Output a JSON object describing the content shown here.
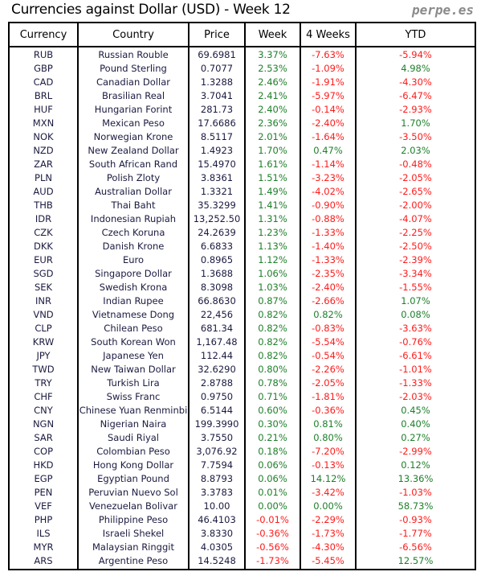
{
  "title": "Currencies against Dollar (USD) - Week 12",
  "brand": "perpe.es",
  "colors": {
    "positive": "#1e7f2a",
    "negative": "#ff1a1a"
  },
  "headers": [
    "Currency",
    "Country",
    "Price",
    "Week",
    "4 Weeks",
    "YTD"
  ],
  "rows": [
    [
      "RUB",
      "Russian Rouble",
      "69.6981",
      "3.37%",
      "-7.63%",
      "-5.94%"
    ],
    [
      "GBP",
      "Pound Sterling",
      "0.7077",
      "2.53%",
      "-1.09%",
      "4.98%"
    ],
    [
      "CAD",
      "Canadian Dollar",
      "1.3288",
      "2.46%",
      "-1.91%",
      "-4.30%"
    ],
    [
      "BRL",
      "Brasilian Real",
      "3.7041",
      "2.41%",
      "-5.97%",
      "-6.47%"
    ],
    [
      "HUF",
      "Hungarian Forint",
      "281.73",
      "2.40%",
      "-0.14%",
      "-2.93%"
    ],
    [
      "MXN",
      "Mexican Peso",
      "17.6686",
      "2.36%",
      "-2.40%",
      "1.70%"
    ],
    [
      "NOK",
      "Norwegian Krone",
      "8.5117",
      "2.01%",
      "-1.64%",
      "-3.50%"
    ],
    [
      "NZD",
      "New Zealand Dollar",
      "1.4923",
      "1.70%",
      "0.47%",
      "2.03%"
    ],
    [
      "ZAR",
      "South African Rand",
      "15.4970",
      "1.61%",
      "-1.14%",
      "-0.48%"
    ],
    [
      "PLN",
      "Polish Zloty",
      "3.8361",
      "1.51%",
      "-3.23%",
      "-2.05%"
    ],
    [
      "AUD",
      "Australian Dollar",
      "1.3321",
      "1.49%",
      "-4.02%",
      "-2.65%"
    ],
    [
      "THB",
      "Thai Baht",
      "35.3299",
      "1.41%",
      "-0.90%",
      "-2.00%"
    ],
    [
      "IDR",
      "Indonesian Rupiah",
      "13,252.50",
      "1.31%",
      "-0.88%",
      "-4.07%"
    ],
    [
      "CZK",
      "Czech Koruna",
      "24.2639",
      "1.23%",
      "-1.33%",
      "-2.25%"
    ],
    [
      "DKK",
      "Danish Krone",
      "6.6833",
      "1.13%",
      "-1.40%",
      "-2.50%"
    ],
    [
      "EUR",
      "Euro",
      "0.8965",
      "1.12%",
      "-1.33%",
      "-2.39%"
    ],
    [
      "SGD",
      "Singapore Dollar",
      "1.3688",
      "1.06%",
      "-2.35%",
      "-3.34%"
    ],
    [
      "SEK",
      "Swedish Krona",
      "8.3098",
      "1.03%",
      "-2.40%",
      "-1.55%"
    ],
    [
      "INR",
      "Indian Rupee",
      "66.8630",
      "0.87%",
      "-2.66%",
      "1.07%"
    ],
    [
      "VND",
      "Vietnamese Dong",
      "22,456",
      "0.82%",
      "0.82%",
      "0.08%"
    ],
    [
      "CLP",
      "Chilean Peso",
      "681.34",
      "0.82%",
      "-0.83%",
      "-3.63%"
    ],
    [
      "KRW",
      "South Korean Won",
      "1,167.48",
      "0.82%",
      "-5.54%",
      "-0.76%"
    ],
    [
      "JPY",
      "Japanese Yen",
      "112.44",
      "0.82%",
      "-0.54%",
      "-6.61%"
    ],
    [
      "TWD",
      "New Taiwan Dollar",
      "32.6290",
      "0.80%",
      "-2.26%",
      "-1.01%"
    ],
    [
      "TRY",
      "Turkish Lira",
      "2.8788",
      "0.78%",
      "-2.05%",
      "-1.33%"
    ],
    [
      "CHF",
      "Swiss Franc",
      "0.9750",
      "0.71%",
      "-1.81%",
      "-2.03%"
    ],
    [
      "CNY",
      "Chinese Yuan Renminbi",
      "6.5144",
      "0.60%",
      "-0.36%",
      "0.45%"
    ],
    [
      "NGN",
      "Nigerian Naira",
      "199.3990",
      "0.30%",
      "0.81%",
      "0.40%"
    ],
    [
      "SAR",
      "Saudi Riyal",
      "3.7550",
      "0.21%",
      "0.80%",
      "0.27%"
    ],
    [
      "COP",
      "Colombian Peso",
      "3,076.92",
      "0.18%",
      "-7.20%",
      "-2.99%"
    ],
    [
      "HKD",
      "Hong Kong Dollar",
      "7.7594",
      "0.06%",
      "-0.13%",
      "0.12%"
    ],
    [
      "EGP",
      "Egyptian Pound",
      "8.8793",
      "0.06%",
      "14.12%",
      "13.36%"
    ],
    [
      "PEN",
      "Peruvian Nuevo Sol",
      "3.3783",
      "0.01%",
      "-3.42%",
      "-1.03%"
    ],
    [
      "VEF",
      "Venezuelan Bolivar",
      "10.00",
      "0.00%",
      "0.00%",
      "58.73%"
    ],
    [
      "PHP",
      "Philippine Peso",
      "46.4103",
      "-0.01%",
      "-2.29%",
      "-0.93%"
    ],
    [
      "ILS",
      "Israeli Shekel",
      "3.8330",
      "-0.36%",
      "-1.73%",
      "-1.77%"
    ],
    [
      "MYR",
      "Malaysian Ringgit",
      "4.0305",
      "-0.56%",
      "-4.30%",
      "-6.56%"
    ],
    [
      "ARS",
      "Argentine Peso",
      "14.5248",
      "-1.73%",
      "-5.45%",
      "12.57%"
    ]
  ]
}
